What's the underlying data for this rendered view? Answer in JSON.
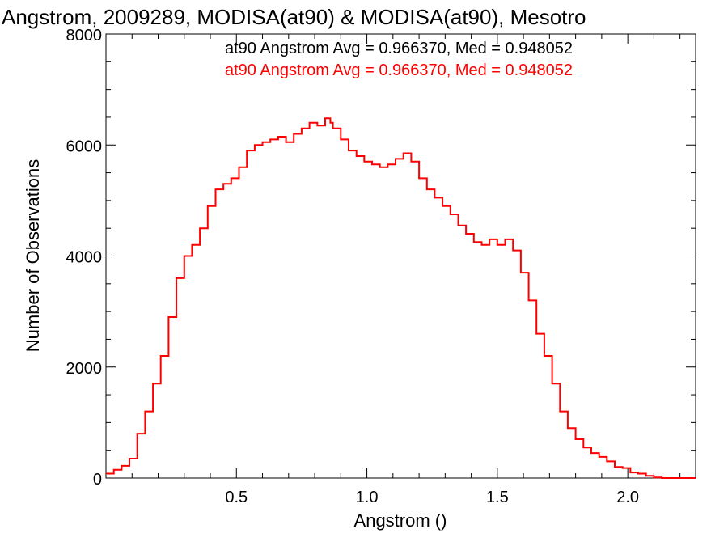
{
  "chart_data": {
    "type": "line",
    "title": "Angstrom, 2009289, MODISA(at90) & MODISA(at90), Mesotro",
    "xlabel": "Angstrom ()",
    "ylabel": "Number of Observations",
    "xlim": [
      0.0,
      2.26
    ],
    "ylim": [
      0,
      8000
    ],
    "x_ticks": [
      "0.5",
      "1.0",
      "1.5",
      "2.0"
    ],
    "y_ticks": [
      "0",
      "2000",
      "4000",
      "6000",
      "8000"
    ],
    "annotations": [
      {
        "text": "at90 Angstrom Avg = 0.966370, Med = 0.948052",
        "color": "#000000"
      },
      {
        "text": "at90 Angstrom Avg = 0.966370, Med = 0.948052",
        "color": "#ff0000"
      }
    ],
    "series": [
      {
        "color": "#ff0000",
        "x": [
          0.0,
          0.03,
          0.06,
          0.09,
          0.12,
          0.15,
          0.18,
          0.21,
          0.24,
          0.27,
          0.3,
          0.33,
          0.36,
          0.39,
          0.42,
          0.45,
          0.48,
          0.51,
          0.54,
          0.57,
          0.6,
          0.63,
          0.66,
          0.69,
          0.72,
          0.75,
          0.78,
          0.81,
          0.84,
          0.86,
          0.87,
          0.9,
          0.93,
          0.96,
          0.99,
          1.02,
          1.05,
          1.08,
          1.11,
          1.14,
          1.17,
          1.2,
          1.23,
          1.26,
          1.29,
          1.32,
          1.35,
          1.38,
          1.41,
          1.44,
          1.47,
          1.5,
          1.53,
          1.56,
          1.59,
          1.62,
          1.65,
          1.68,
          1.71,
          1.74,
          1.77,
          1.8,
          1.83,
          1.86,
          1.89,
          1.92,
          1.95,
          1.98,
          2.01,
          2.04,
          2.07,
          2.1,
          2.13,
          2.16,
          2.19,
          2.22,
          2.25
        ],
        "y": [
          80,
          150,
          220,
          350,
          800,
          1200,
          1700,
          2200,
          2900,
          3600,
          4000,
          4200,
          4500,
          4900,
          5200,
          5300,
          5400,
          5600,
          5900,
          6000,
          6050,
          6100,
          6150,
          6050,
          6200,
          6300,
          6400,
          6350,
          6480,
          6400,
          6300,
          6100,
          5900,
          5800,
          5700,
          5650,
          5600,
          5650,
          5750,
          5850,
          5700,
          5400,
          5200,
          5050,
          4900,
          4750,
          4550,
          4400,
          4250,
          4200,
          4300,
          4200,
          4300,
          4100,
          3700,
          3200,
          2600,
          2200,
          1700,
          1200,
          900,
          700,
          550,
          450,
          380,
          300,
          200,
          180,
          100,
          80,
          40,
          10,
          0,
          0,
          0,
          0,
          0
        ]
      }
    ]
  }
}
